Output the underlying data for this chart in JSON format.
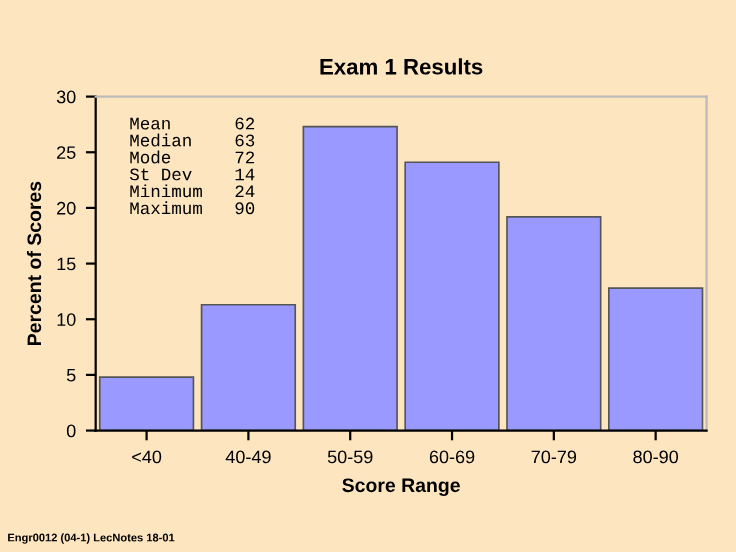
{
  "chart_data": {
    "type": "bar",
    "title": "Exam 1 Results",
    "xlabel": "Score Range",
    "ylabel": "Percent of Scores",
    "categories": [
      "<40",
      "40-49",
      "50-59",
      "60-69",
      "70-79",
      "80-90"
    ],
    "values": [
      4.8,
      11.3,
      27.3,
      24.1,
      19.2,
      12.8
    ],
    "color": "#9999ff",
    "ylim": [
      0,
      30
    ],
    "yticks": [
      0,
      5,
      10,
      15,
      20,
      25,
      30
    ],
    "grid": false,
    "legend": false,
    "annotations": [
      "Mean      62\nMedian    63\nMode      72\nSt Dev    14\nMinimum   24\nMaximum   90",
      "Engr0012 (04-1) LecNotes 18-01"
    ]
  }
}
